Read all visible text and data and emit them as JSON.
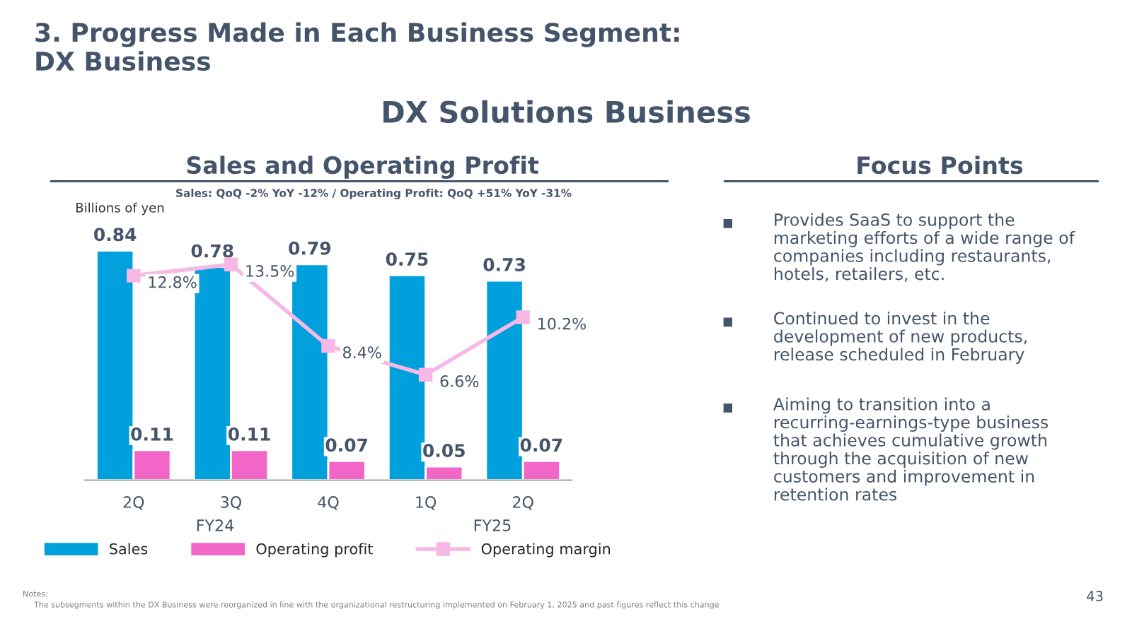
{
  "chart_data": {
    "type": "bar",
    "title": "3. Progress Made in Each Business Segment:\nDX Business",
    "subtitle": "DX Solutions Business",
    "ylabel": "Billions of yen",
    "categories": [
      "2Q",
      "3Q",
      "4Q",
      "1Q",
      "2Q"
    ],
    "series": [
      {
        "name": "Sales",
        "color": "#00a0dc",
        "values": [
          0.84,
          0.78,
          0.79,
          0.75,
          0.73
        ]
      },
      {
        "name": "Operating profit",
        "color": "#f266c8",
        "values": [
          0.11,
          0.11,
          0.07,
          0.05,
          0.07
        ]
      },
      {
        "name": "Operating margin",
        "type": "line",
        "axis": "y2",
        "color": "#f7b8e6",
        "marker": "square",
        "values": [
          12.8,
          13.5,
          8.4,
          6.6,
          10.2
        ],
        "value_labels": [
          "12.8%",
          "13.5%",
          "8.4%",
          "6.6%",
          "10.2%"
        ]
      }
    ],
    "data_labels": true,
    "legend": "bottom",
    "grid": false,
    "annotations": [
      "Sales and Operating Profit",
      "Sales: QoQ -2% YoY -12% / Operating Profit: QoQ +51% YoY -31%",
      "FY24",
      "FY25",
      "Focus Points",
      "Provides SaaS to support the\nmarketing efforts of a wide range of\ncompanies including restaurants,\nhotels, retailers, etc.",
      "Continued to invest in the\ndevelopment of new products,\nrelease scheduled in February",
      "Aiming to transition into a\nrecurring-earnings-type business\nthat achieves cumulative growth\nthrough the acquisition of new\ncustomers and improvement in\nretention rates",
      "Notes:",
      "The subsegments within the DX Business were reorganized in line with the organizational restructuring implemented on February 1, 2025 and past figures reflect this change",
      "43"
    ]
  }
}
